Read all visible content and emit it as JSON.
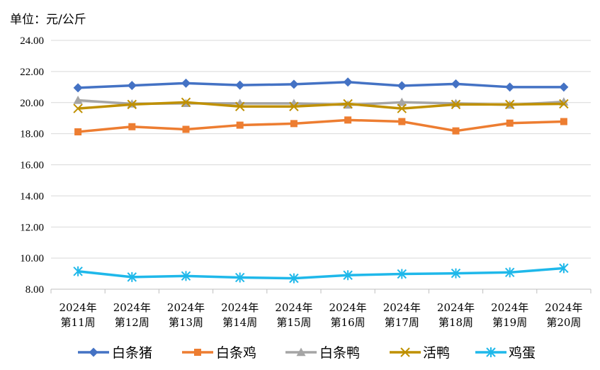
{
  "unit_label": "单位：元/公斤",
  "colors": {
    "白条猪": "#4472c4",
    "白条鸡": "#ed7d31",
    "白条鸭": "#a5a5a5",
    "活鸭": "#bf9000",
    "鸡蛋": "#1fb8ea",
    "grid": "#d9d9d9",
    "axis": "#bfbfbf"
  },
  "chart_data": {
    "type": "line",
    "title": "",
    "xlabel": "",
    "ylabel": "",
    "ylim": [
      8,
      24
    ],
    "y_ticks": [
      "8.00",
      "10.00",
      "12.00",
      "14.00",
      "16.00",
      "18.00",
      "20.00",
      "22.00",
      "24.00"
    ],
    "grid": true,
    "legend_position": "bottom",
    "categories": [
      [
        "2024年",
        "第11周"
      ],
      [
        "2024年",
        "第12周"
      ],
      [
        "2024年",
        "第13周"
      ],
      [
        "2024年",
        "第14周"
      ],
      [
        "2024年",
        "第15周"
      ],
      [
        "2024年",
        "第16周"
      ],
      [
        "2024年",
        "第17周"
      ],
      [
        "2024年",
        "第18周"
      ],
      [
        "2024年",
        "第19周"
      ],
      [
        "2024年",
        "第20周"
      ]
    ],
    "series": [
      {
        "name": "白条猪",
        "marker": "diamond",
        "values": [
          20.95,
          21.1,
          21.25,
          21.12,
          21.18,
          21.32,
          21.08,
          21.2,
          21.0,
          21.0
        ]
      },
      {
        "name": "白条鸡",
        "marker": "square",
        "values": [
          18.12,
          18.45,
          18.28,
          18.55,
          18.65,
          18.88,
          18.78,
          18.18,
          18.68,
          18.78
        ]
      },
      {
        "name": "白条鸭",
        "marker": "triangle",
        "values": [
          20.15,
          19.92,
          19.95,
          19.95,
          19.95,
          19.85,
          20.02,
          19.95,
          19.85,
          20.05
        ]
      },
      {
        "name": "活鸭",
        "marker": "x",
        "values": [
          19.62,
          19.88,
          20.02,
          19.75,
          19.75,
          19.92,
          19.62,
          19.88,
          19.88,
          19.92
        ]
      },
      {
        "name": "鸡蛋",
        "marker": "star",
        "values": [
          9.15,
          8.78,
          8.85,
          8.75,
          8.7,
          8.9,
          8.98,
          9.02,
          9.08,
          9.35
        ]
      }
    ]
  }
}
